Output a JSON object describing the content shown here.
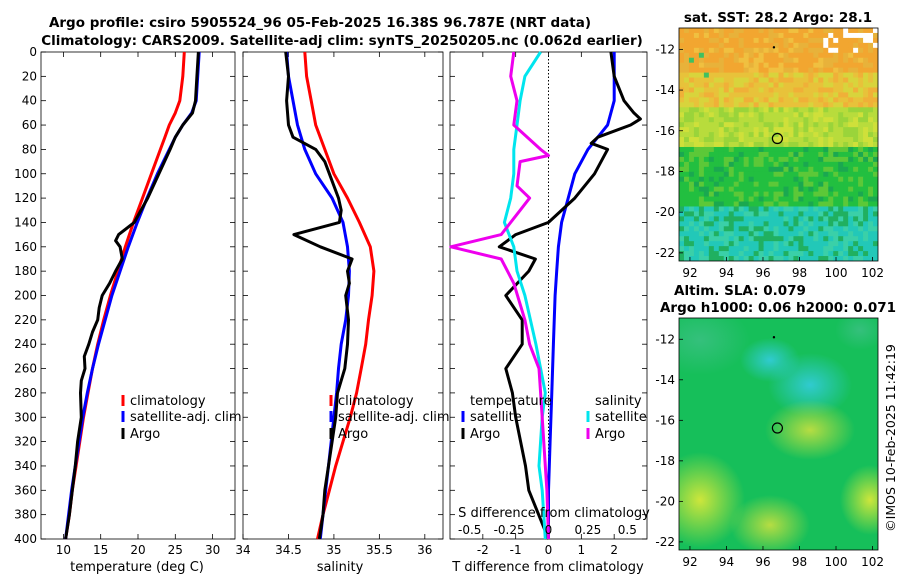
{
  "titles": {
    "line1": "Argo profile: csiro 5905524_96 05-Feb-2025 16.38S 96.787E (NRT data)",
    "line2": "Climatology: CARS2009. Satellite-adj clim: synTS_20250205.nc (0.062d earlier)",
    "sst": "sat. SST: 28.2 Argo: 28.1",
    "sla1": "Altim. SLA: 0.079",
    "sla2": "Argo h1000: 0.06 h2000: 0.071",
    "credit": "©IMOS 10-Feb-2025 11:42:19"
  },
  "colors": {
    "climatology": "#ff0000",
    "satellite": "#0000ff",
    "argo": "#000000",
    "sat_salinity": "#00e5ee",
    "argo_salinity": "#ee00ee"
  },
  "chart_data": [
    {
      "type": "line",
      "title": "Temperature profile",
      "xlabel": "temperature (deg C)",
      "xlim": [
        7,
        33
      ],
      "ylim": [
        400,
        0
      ],
      "xticks": [
        "10",
        "15",
        "20",
        "25",
        "30"
      ],
      "yticks": [
        "0",
        "20",
        "40",
        "60",
        "80",
        "100",
        "120",
        "140",
        "160",
        "180",
        "200",
        "220",
        "240",
        "260",
        "280",
        "300",
        "320",
        "340",
        "360",
        "380",
        "400"
      ],
      "legend": [
        "climatology",
        "satellite-adj. clim",
        "Argo"
      ],
      "series": [
        {
          "name": "climatology",
          "depth": [
            0,
            20,
            40,
            50,
            60,
            70,
            80,
            100,
            120,
            140,
            160,
            180,
            200,
            220,
            240,
            260,
            280,
            300,
            320,
            340,
            360,
            380,
            400
          ],
          "values": [
            26.2,
            26.0,
            25.6,
            25.0,
            24.2,
            23.6,
            23.0,
            21.8,
            20.6,
            19.4,
            18.3,
            17.3,
            16.3,
            15.4,
            14.6,
            13.9,
            13.3,
            12.7,
            12.2,
            11.7,
            11.2,
            10.8,
            10.3
          ]
        },
        {
          "name": "satellite-adj. clim",
          "depth": [
            0,
            20,
            40,
            50,
            60,
            70,
            80,
            100,
            120,
            140,
            160,
            180,
            200,
            220,
            240,
            260,
            280,
            300,
            320,
            340,
            360,
            380,
            400
          ],
          "values": [
            28.2,
            28.0,
            27.8,
            27.2,
            26.0,
            25.0,
            24.2,
            22.6,
            21.2,
            19.9,
            18.7,
            17.6,
            16.5,
            15.6,
            14.7,
            13.9,
            13.2,
            12.6,
            12.1,
            11.6,
            11.1,
            10.7,
            10.3
          ]
        },
        {
          "name": "Argo",
          "depth": [
            0,
            20,
            40,
            50,
            60,
            70,
            80,
            100,
            120,
            140,
            150,
            155,
            160,
            170,
            180,
            190,
            200,
            210,
            220,
            230,
            240,
            250,
            260,
            270,
            280,
            300,
            320,
            340,
            360,
            380,
            400
          ],
          "values": [
            28.1,
            27.9,
            27.7,
            27.3,
            26.0,
            25.0,
            24.3,
            22.8,
            21.3,
            19.5,
            17.4,
            17.0,
            17.6,
            17.9,
            17.0,
            16.2,
            15.2,
            14.8,
            14.6,
            13.9,
            13.4,
            12.8,
            12.9,
            12.4,
            12.3,
            12.4,
            11.9,
            11.6,
            11.2,
            10.8,
            10.3
          ]
        }
      ]
    },
    {
      "type": "line",
      "title": "Salinity profile",
      "xlabel": "salinity",
      "xlim": [
        34,
        36.2
      ],
      "ylim": [
        400,
        0
      ],
      "xticks": [
        "34",
        "34.5",
        "35",
        "35.5",
        "36"
      ],
      "legend": [
        "climatology",
        "satellite-adj. clim",
        "Argo"
      ],
      "series": [
        {
          "name": "climatology",
          "depth": [
            0,
            20,
            40,
            60,
            80,
            100,
            120,
            140,
            160,
            180,
            200,
            220,
            240,
            260,
            280,
            300,
            320,
            340,
            360,
            380,
            400
          ],
          "values": [
            34.68,
            34.7,
            34.75,
            34.8,
            34.9,
            35.0,
            35.15,
            35.28,
            35.4,
            35.44,
            35.42,
            35.38,
            35.35,
            35.3,
            35.25,
            35.18,
            35.1,
            35.02,
            34.95,
            34.88,
            34.82
          ]
        },
        {
          "name": "satellite-adj. clim",
          "depth": [
            0,
            20,
            40,
            60,
            80,
            100,
            120,
            140,
            160,
            180,
            200,
            220,
            240,
            260,
            280,
            300,
            320,
            340,
            360,
            380,
            400
          ],
          "values": [
            34.48,
            34.5,
            34.55,
            34.6,
            34.68,
            34.8,
            34.98,
            35.1,
            35.15,
            35.17,
            35.16,
            35.13,
            35.08,
            35.05,
            35.03,
            35.0,
            34.97,
            34.94,
            34.91,
            34.88,
            34.85
          ]
        },
        {
          "name": "Argo",
          "depth": [
            0,
            20,
            40,
            60,
            70,
            80,
            90,
            100,
            110,
            120,
            130,
            140,
            150,
            160,
            170,
            180,
            190,
            200,
            220,
            240,
            260,
            280,
            300,
            320,
            340,
            360,
            380,
            400
          ],
          "values": [
            34.47,
            34.5,
            34.48,
            34.5,
            34.55,
            34.8,
            34.9,
            34.95,
            35.0,
            35.05,
            35.08,
            35.06,
            34.56,
            34.85,
            35.2,
            35.15,
            35.17,
            35.13,
            35.16,
            35.15,
            35.12,
            35.04,
            35.02,
            34.98,
            34.94,
            34.9,
            34.88,
            34.84
          ]
        }
      ]
    },
    {
      "type": "line",
      "title": "Difference from climatology",
      "xlabel": "T difference from climatology",
      "xlabel_top": "S difference from climatology",
      "xlim": [
        -3,
        3
      ],
      "ylim": [
        400,
        0
      ],
      "xticks": [
        "-2",
        "-1",
        "0",
        "1",
        "2"
      ],
      "xticks_top": [
        "-0.5",
        "-0.25",
        "0",
        "0.25",
        "0.5"
      ],
      "legend_temperature_title": "temperature",
      "legend_salinity_title": "salinity",
      "legend_temperature": [
        "satellite",
        "Argo"
      ],
      "legend_salinity": [
        "satellite",
        "Argo"
      ],
      "series": [
        {
          "name": "T satellite",
          "depth": [
            0,
            20,
            40,
            60,
            80,
            100,
            120,
            140,
            160,
            180,
            200,
            240,
            280,
            320,
            360,
            400
          ],
          "values": [
            2.0,
            2.0,
            2.0,
            1.8,
            1.2,
            0.8,
            0.6,
            0.4,
            0.3,
            0.25,
            0.2,
            0.15,
            0.1,
            0.05,
            0.0,
            0.0
          ]
        },
        {
          "name": "T Argo",
          "depth": [
            0,
            20,
            40,
            50,
            55,
            60,
            70,
            75,
            80,
            100,
            120,
            140,
            150,
            160,
            170,
            180,
            200,
            220,
            240,
            260,
            280,
            300,
            340,
            360,
            400
          ],
          "values": [
            1.9,
            2.0,
            2.3,
            2.6,
            2.8,
            2.5,
            1.5,
            1.3,
            1.8,
            1.4,
            0.8,
            0.0,
            -1.0,
            -1.5,
            -0.4,
            -0.6,
            -1.3,
            -0.8,
            -0.8,
            -1.3,
            -1.1,
            -1.0,
            -0.7,
            -0.6,
            0.0
          ]
        },
        {
          "name": "S satellite",
          "depth": [
            0,
            20,
            40,
            60,
            80,
            100,
            120,
            140,
            160,
            180,
            200,
            240,
            280,
            300,
            340,
            360,
            400
          ],
          "values": [
            -0.05,
            -0.15,
            -0.18,
            -0.2,
            -0.22,
            -0.22,
            -0.24,
            -0.28,
            -0.22,
            -0.2,
            -0.15,
            -0.08,
            -0.02,
            -0.04,
            -0.06,
            -0.04,
            -0.02
          ]
        },
        {
          "name": "S Argo",
          "depth": [
            0,
            20,
            40,
            60,
            80,
            85,
            90,
            110,
            120,
            130,
            150,
            160,
            170,
            190,
            220,
            240,
            260,
            300,
            340,
            360,
            400
          ],
          "values": [
            -0.22,
            -0.24,
            -0.2,
            -0.22,
            -0.05,
            0.0,
            -0.18,
            -0.2,
            -0.12,
            -0.18,
            -0.3,
            -0.62,
            -0.3,
            -0.22,
            -0.15,
            -0.12,
            -0.06,
            -0.04,
            -0.02,
            -0.01,
            0.0
          ]
        }
      ]
    },
    {
      "type": "heatmap",
      "title": "sat. SST: 28.2 Argo: 28.1",
      "xticks": [
        "92",
        "94",
        "96",
        "98",
        "100",
        "102"
      ],
      "yticks": [
        "-12",
        "-14",
        "-16",
        "-18",
        "-20",
        "-22"
      ],
      "marker": {
        "lon": 96.79,
        "lat": -16.38
      }
    },
    {
      "type": "heatmap",
      "title": "Altim. SLA: 0.079",
      "xticks": [
        "92",
        "94",
        "96",
        "98",
        "100",
        "102"
      ],
      "yticks": [
        "-12",
        "-14",
        "-16",
        "-18",
        "-20",
        "-22"
      ],
      "marker": {
        "lon": 96.79,
        "lat": -16.38
      }
    }
  ]
}
